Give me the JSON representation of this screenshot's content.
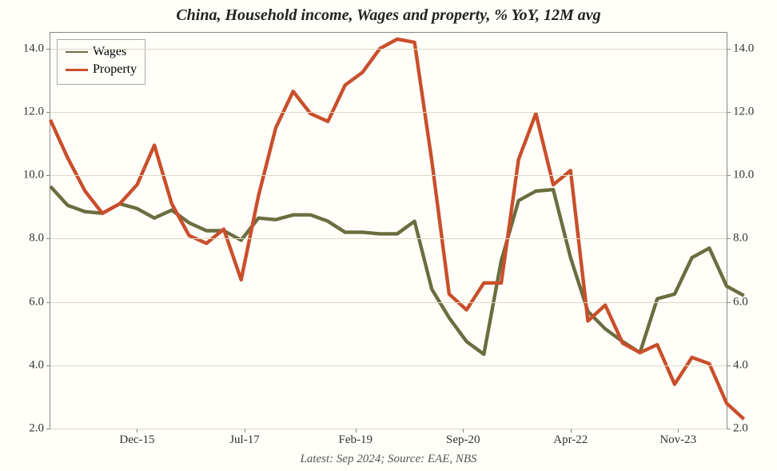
{
  "chart": {
    "type": "line",
    "title": "China, Household income, Wages and property, % YoY, 12M avg",
    "title_fontsize": 20,
    "source": "Latest: Sep 2024; Source: EAE, NBS",
    "source_fontsize": 15,
    "background_color": "#fffef8",
    "grid_color": "#ddd9c8",
    "axis_color": "#888888",
    "tick_fontsize": 15,
    "tick_color": "#333333",
    "legend": {
      "position": "top-left",
      "items": [
        {
          "label": "Wages",
          "color": "#6b6d3f"
        },
        {
          "label": "Property",
          "color": "#c94f2a"
        }
      ],
      "fontsize": 16
    },
    "y": {
      "min": 2.0,
      "max": 14.5,
      "ticks": [
        2.0,
        4.0,
        6.0,
        8.0,
        10.0,
        12.0,
        14.0
      ],
      "tick_labels": [
        "2.0",
        "4.0",
        "6.0",
        "8.0",
        "10.0",
        "12.0",
        "14.0"
      ]
    },
    "x": {
      "min": 0,
      "max": 39,
      "ticks": [
        5,
        11.2,
        17.6,
        23.8,
        30.0,
        36.2
      ],
      "tick_labels": [
        "Dec-15",
        "Jul-17",
        "Feb-19",
        "Sep-20",
        "Apr-22",
        "Nov-23"
      ]
    },
    "series": [
      {
        "name": "Wages",
        "color": "#6b6d3f",
        "width": 2.2,
        "y": [
          9.65,
          9.05,
          8.85,
          8.8,
          9.1,
          8.95,
          8.65,
          8.9,
          8.5,
          8.25,
          8.25,
          7.95,
          8.65,
          8.6,
          8.75,
          8.75,
          8.55,
          8.2,
          8.2,
          8.15,
          8.15,
          8.55,
          6.4,
          5.5,
          4.75,
          4.35,
          7.3,
          9.2,
          9.5,
          9.55,
          7.4,
          5.7,
          5.15,
          4.75,
          4.4,
          6.1,
          6.25,
          7.4,
          7.7,
          6.5,
          6.2
        ]
      },
      {
        "name": "Property",
        "color": "#c94f2a",
        "width": 2.2,
        "y": [
          11.75,
          10.55,
          9.5,
          8.8,
          9.1,
          9.7,
          10.95,
          9.1,
          8.1,
          7.85,
          8.3,
          6.7,
          9.35,
          11.5,
          12.65,
          11.95,
          11.7,
          12.85,
          13.25,
          14.0,
          14.3,
          14.2,
          10.45,
          6.25,
          5.75,
          6.6,
          6.6,
          10.5,
          11.95,
          9.7,
          10.15,
          5.4,
          5.9,
          4.7,
          4.4,
          4.65,
          3.4,
          4.25,
          4.05,
          2.8,
          2.3
        ]
      }
    ]
  }
}
